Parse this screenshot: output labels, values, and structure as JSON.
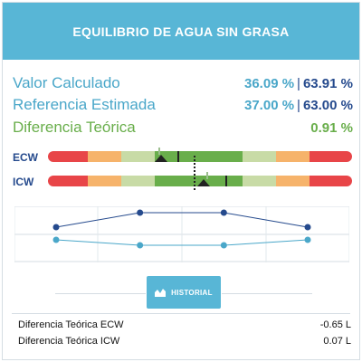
{
  "header": {
    "title": "EQUILIBRIO DE AGUA SIN GRASA"
  },
  "metrics": [
    {
      "label": "Valor Calculado",
      "value_a": "36.09 %",
      "separator": "|",
      "value_b": "63.91 %"
    },
    {
      "label": "Referencia Estimada",
      "value_a": "37.00 %",
      "separator": "|",
      "value_b": "63.00 %"
    },
    {
      "label": "Diferencia Teórica",
      "value": "0.91 %"
    }
  ],
  "bars": [
    {
      "label": "ECW"
    },
    {
      "label": "ICW"
    }
  ],
  "colors": {
    "header": "#58b6d6",
    "accent_blue": "#4aa7c9",
    "navy": "#254a8d",
    "green": "#69ae4b",
    "red": "#e84548",
    "orange": "#f6b36b",
    "light_green": "#c8dba6"
  },
  "chart_data": {
    "type": "line",
    "grid": true,
    "series": [
      {
        "values": [
          0.2,
          0.6,
          0.6,
          0.2
        ],
        "color": "#254a8d"
      },
      {
        "values": [
          -0.15,
          -0.3,
          -0.3,
          -0.15
        ],
        "color": "#4aa7c9"
      }
    ]
  },
  "history_button": {
    "label": "HISTORIAL",
    "icon": "chart-area-icon"
  },
  "footer": [
    {
      "label": "Diferencia Teórica ECW",
      "value": "-0.65 L"
    },
    {
      "label": "Diferencia Teórica ICW",
      "value": "0.07 L"
    }
  ]
}
